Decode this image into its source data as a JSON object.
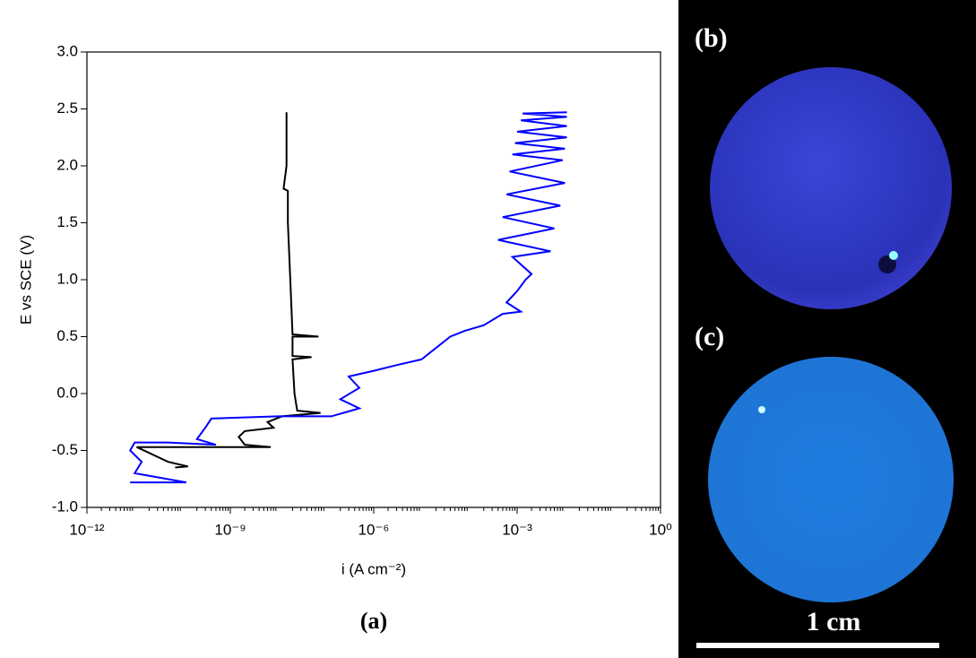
{
  "chart_data": {
    "type": "line",
    "xlabel": "i (A cm⁻²)",
    "ylabel": "E vs SCE (V)",
    "xscale": "log",
    "xlim": [
      1e-12,
      1
    ],
    "ylim": [
      -1,
      3
    ],
    "xticks": [
      {
        "value": 1e-12,
        "label": "10⁻¹²"
      },
      {
        "value": 1e-09,
        "label": "10⁻⁹"
      },
      {
        "value": 1e-06,
        "label": "10⁻⁶"
      },
      {
        "value": 0.001,
        "label": "10⁻³"
      },
      {
        "value": 1,
        "label": "10⁰"
      }
    ],
    "yticks": [
      {
        "value": -1,
        "label": "-1.0"
      },
      -0.5,
      {
        "value": 0,
        "label": "0.0"
      },
      0.5,
      {
        "value": 1,
        "label": "1.0"
      },
      1.5,
      {
        "value": 2,
        "label": "2.0"
      },
      2.5,
      {
        "value": 3,
        "label": "3.0"
      }
    ],
    "series": [
      {
        "color": "#000000",
        "x": [
          7e-11,
          1.3e-10,
          5e-11,
          1.1e-11,
          7e-09,
          2e-09,
          1.5e-09,
          2e-09,
          8e-09,
          6e-09,
          1.2e-08,
          7.7e-08,
          2.5e-08,
          2.2e-08,
          2e-08,
          5e-08,
          2e-08,
          2e-08,
          7e-08,
          2e-08,
          1.8e-08,
          1.6e-08,
          1.6e-08,
          1.3e-08,
          1.5e-08,
          1.5e-08
        ],
        "values": [
          -0.65,
          -0.64,
          -0.6,
          -0.47,
          -0.47,
          -0.45,
          -0.38,
          -0.33,
          -0.3,
          -0.25,
          -0.2,
          -0.17,
          -0.15,
          0.0,
          0.3,
          0.32,
          0.33,
          0.5,
          0.5,
          0.52,
          1.0,
          1.5,
          1.78,
          1.8,
          2.0,
          2.47
        ]
      },
      {
        "color": "#0000ff",
        "x": [
          8e-12,
          1.2e-10,
          1e-11,
          1.4e-11,
          8e-12,
          1e-11,
          5e-11,
          5e-10,
          2e-10,
          3e-10,
          4e-10,
          1e-08,
          1.3e-07,
          5e-07,
          2e-07,
          5e-07,
          3e-07,
          1e-06,
          3e-06,
          1e-05,
          2e-05,
          4e-05,
          8e-05,
          0.0002,
          0.0005,
          0.0012,
          0.0006,
          0.001,
          0.0015,
          0.002,
          0.0008,
          0.005,
          0.0004,
          0.006,
          0.0005,
          0.008,
          0.0006,
          0.01,
          0.0007,
          0.009,
          0.0008,
          0.01,
          0.0009,
          0.011,
          0.001,
          0.011,
          0.0012,
          0.011,
          0.0013,
          0.011
        ],
        "values": [
          -0.78,
          -0.78,
          -0.7,
          -0.6,
          -0.5,
          -0.43,
          -0.43,
          -0.45,
          -0.4,
          -0.3,
          -0.22,
          -0.2,
          -0.2,
          -0.13,
          -0.05,
          0.05,
          0.15,
          0.2,
          0.25,
          0.3,
          0.4,
          0.5,
          0.55,
          0.6,
          0.7,
          0.72,
          0.8,
          0.9,
          1.0,
          1.05,
          1.2,
          1.25,
          1.35,
          1.45,
          1.55,
          1.65,
          1.75,
          1.85,
          1.95,
          2.05,
          2.1,
          2.15,
          2.2,
          2.25,
          2.3,
          2.35,
          2.4,
          2.43,
          2.46,
          2.47
        ]
      }
    ]
  },
  "panels": {
    "a": "(a)",
    "b": "(b)",
    "c": "(c)",
    "scale_bar": "1 cm"
  }
}
